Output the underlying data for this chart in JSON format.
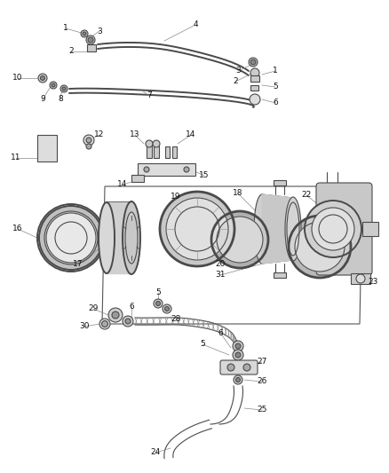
{
  "bg_color": "#ffffff",
  "fig_width": 4.38,
  "fig_height": 5.33,
  "dpi": 100,
  "line_color": "#4a4a4a",
  "label_color": "#111111",
  "label_fs": 6.5
}
